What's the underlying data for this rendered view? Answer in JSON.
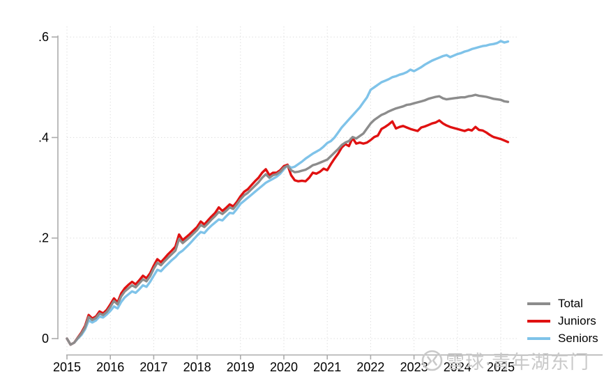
{
  "chart_data": {
    "type": "line",
    "title": "",
    "xlabel": "",
    "ylabel": "",
    "x_start": 2015,
    "points_per_year": 12,
    "xlim": [
      2015,
      2025.4
    ],
    "ylim": [
      -0.02,
      0.6
    ],
    "grid": "dotted",
    "legend_position": "outside-right-bottom",
    "x_ticks": [
      2015,
      2016,
      2017,
      2018,
      2019,
      2020,
      2021,
      2022,
      2023,
      2024,
      2025
    ],
    "y_ticks": [
      {
        "value": 0,
        "label": "0"
      },
      {
        "value": 0.2,
        "label": ".2"
      },
      {
        "value": 0.4,
        "label": ".4"
      },
      {
        "value": 0.6,
        "label": ".6"
      }
    ],
    "series": [
      {
        "name": "Total",
        "color": "#8c8c8c",
        "values": [
          0.0,
          -0.012,
          -0.008,
          0.001,
          0.01,
          0.022,
          0.043,
          0.037,
          0.041,
          0.05,
          0.047,
          0.053,
          0.063,
          0.075,
          0.068,
          0.084,
          0.094,
          0.1,
          0.106,
          0.102,
          0.11,
          0.118,
          0.114,
          0.124,
          0.139,
          0.151,
          0.146,
          0.154,
          0.161,
          0.168,
          0.175,
          0.198,
          0.19,
          0.196,
          0.202,
          0.209,
          0.216,
          0.226,
          0.222,
          0.229,
          0.237,
          0.244,
          0.252,
          0.248,
          0.254,
          0.261,
          0.258,
          0.267,
          0.277,
          0.285,
          0.29,
          0.297,
          0.304,
          0.311,
          0.32,
          0.327,
          0.32,
          0.325,
          0.327,
          0.332,
          0.34,
          0.344,
          0.335,
          0.331,
          0.332,
          0.334,
          0.336,
          0.34,
          0.345,
          0.347,
          0.35,
          0.353,
          0.356,
          0.363,
          0.37,
          0.377,
          0.385,
          0.39,
          0.393,
          0.401,
          0.398,
          0.403,
          0.408,
          0.418,
          0.428,
          0.435,
          0.44,
          0.445,
          0.448,
          0.452,
          0.455,
          0.458,
          0.46,
          0.462,
          0.465,
          0.466,
          0.468,
          0.47,
          0.472,
          0.474,
          0.477,
          0.479,
          0.481,
          0.482,
          0.478,
          0.476,
          0.477,
          0.478,
          0.479,
          0.48,
          0.48,
          0.482,
          0.483,
          0.485,
          0.483,
          0.482,
          0.481,
          0.479,
          0.477,
          0.476,
          0.475,
          0.472,
          0.471
        ]
      },
      {
        "name": "Juniors",
        "color": "#e01111",
        "values": [
          0.0,
          -0.012,
          -0.008,
          0.002,
          0.012,
          0.025,
          0.047,
          0.04,
          0.044,
          0.054,
          0.05,
          0.057,
          0.068,
          0.08,
          0.072,
          0.09,
          0.1,
          0.107,
          0.113,
          0.108,
          0.116,
          0.125,
          0.12,
          0.13,
          0.145,
          0.158,
          0.152,
          0.16,
          0.168,
          0.175,
          0.183,
          0.207,
          0.196,
          0.202,
          0.208,
          0.215,
          0.222,
          0.233,
          0.227,
          0.235,
          0.243,
          0.25,
          0.261,
          0.254,
          0.26,
          0.267,
          0.263,
          0.272,
          0.283,
          0.292,
          0.297,
          0.305,
          0.313,
          0.32,
          0.33,
          0.337,
          0.325,
          0.33,
          0.33,
          0.335,
          0.343,
          0.346,
          0.325,
          0.315,
          0.313,
          0.314,
          0.313,
          0.32,
          0.33,
          0.328,
          0.332,
          0.338,
          0.335,
          0.347,
          0.358,
          0.368,
          0.38,
          0.387,
          0.383,
          0.399,
          0.388,
          0.39,
          0.388,
          0.39,
          0.395,
          0.401,
          0.404,
          0.417,
          0.421,
          0.426,
          0.432,
          0.418,
          0.421,
          0.423,
          0.42,
          0.417,
          0.415,
          0.413,
          0.42,
          0.422,
          0.425,
          0.428,
          0.43,
          0.434,
          0.428,
          0.424,
          0.421,
          0.419,
          0.417,
          0.415,
          0.413,
          0.416,
          0.414,
          0.421,
          0.415,
          0.414,
          0.41,
          0.405,
          0.401,
          0.399,
          0.397,
          0.394,
          0.391
        ]
      },
      {
        "name": "Seniors",
        "color": "#7fc3e9",
        "values": [
          0.0,
          -0.012,
          -0.008,
          0.0,
          0.007,
          0.018,
          0.036,
          0.032,
          0.036,
          0.044,
          0.042,
          0.048,
          0.055,
          0.064,
          0.06,
          0.073,
          0.082,
          0.088,
          0.094,
          0.091,
          0.098,
          0.106,
          0.103,
          0.113,
          0.125,
          0.137,
          0.134,
          0.142,
          0.149,
          0.156,
          0.162,
          0.17,
          0.175,
          0.182,
          0.189,
          0.197,
          0.205,
          0.212,
          0.21,
          0.218,
          0.225,
          0.231,
          0.237,
          0.235,
          0.243,
          0.25,
          0.249,
          0.258,
          0.268,
          0.274,
          0.28,
          0.286,
          0.292,
          0.298,
          0.304,
          0.31,
          0.314,
          0.318,
          0.322,
          0.328,
          0.337,
          0.345,
          0.34,
          0.342,
          0.347,
          0.352,
          0.358,
          0.363,
          0.368,
          0.372,
          0.376,
          0.382,
          0.389,
          0.393,
          0.4,
          0.41,
          0.42,
          0.428,
          0.436,
          0.444,
          0.452,
          0.46,
          0.47,
          0.48,
          0.495,
          0.5,
          0.505,
          0.51,
          0.513,
          0.516,
          0.52,
          0.522,
          0.525,
          0.527,
          0.53,
          0.535,
          0.532,
          0.536,
          0.54,
          0.545,
          0.549,
          0.553,
          0.556,
          0.559,
          0.562,
          0.564,
          0.56,
          0.563,
          0.566,
          0.568,
          0.571,
          0.573,
          0.576,
          0.578,
          0.58,
          0.582,
          0.583,
          0.585,
          0.586,
          0.588,
          0.592,
          0.589,
          0.591
        ]
      }
    ],
    "draw_order": [
      2,
      1,
      0
    ]
  },
  "legend": {
    "items": [
      "Total",
      "Juniors",
      "Seniors"
    ]
  },
  "watermark": {
    "text": "雪球·青年湖东门",
    "logo": "xueqiu-snowball-icon",
    "color": "#c9c9c9"
  },
  "style_colors": {
    "grid": "#d9d9d9",
    "axis": "#ababab",
    "tick_text": "#000000"
  }
}
